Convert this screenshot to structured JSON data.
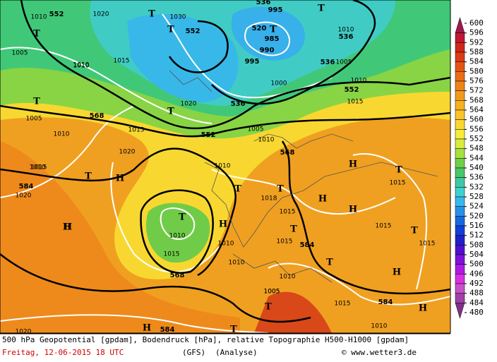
{
  "legend": {
    "labels": [
      "600",
      "596",
      "592",
      "588",
      "584",
      "580",
      "576",
      "572",
      "568",
      "564",
      "560",
      "556",
      "552",
      "548",
      "544",
      "540",
      "536",
      "532",
      "528",
      "524",
      "520",
      "516",
      "512",
      "508",
      "504",
      "500",
      "496",
      "492",
      "488",
      "484",
      "480"
    ],
    "colors": [
      "#a0184c",
      "#c01830",
      "#d02818",
      "#dc3c14",
      "#e45414",
      "#ea6c16",
      "#ee8418",
      "#f29a1c",
      "#f6b020",
      "#f8c428",
      "#fad830",
      "#f6ec3c",
      "#d8ec40",
      "#a8e040",
      "#70d048",
      "#48c868",
      "#40c8a0",
      "#40d0d0",
      "#38b8ec",
      "#2890e8",
      "#1868e0",
      "#1040d8",
      "#2020c8",
      "#5010d0",
      "#8010dc",
      "#b018e4",
      "#d830e0",
      "#c850c8",
      "#a040a8",
      "#803088"
    ]
  },
  "caption": {
    "line1": "500 hPa Geopotential [gpdam], Bodendruck [hPa], relative Topographie H500-H1000 [gpdam]",
    "date": "Freitag, 12-06-2015  18 UTC",
    "model": "(GFS)",
    "mode": "(Analyse)",
    "credit": "© www.wetter3.de"
  },
  "map_labels": [
    "552",
    "1010",
    "1020",
    "T",
    "1030",
    "552",
    "T",
    "536",
    "995",
    "520",
    "T",
    "985",
    "990",
    "T",
    "1010",
    "536",
    "1010",
    "T",
    "1005",
    "1010",
    "1015",
    "536",
    "1005",
    "995",
    "1000",
    "T",
    "1020",
    "536",
    "552",
    "1010",
    "1015",
    "T",
    "1005",
    "568",
    "1010",
    "1015",
    "T",
    "552",
    "1005",
    "1010",
    "1020",
    "568",
    "1010",
    "H",
    "1015",
    "1010",
    "H",
    "T",
    "1015",
    "584",
    "1020",
    "T",
    "T",
    "1018",
    "1015",
    "1010",
    "H",
    "H",
    "H",
    "1015",
    "T",
    "H",
    "1015",
    "1010",
    "T",
    "T",
    "1015",
    "1015",
    "584",
    "T",
    "1010",
    "568",
    "1010",
    "1005",
    "H",
    "T",
    "1015",
    "584",
    "H",
    "H",
    "1020",
    "H",
    "584",
    "T",
    "1010",
    "1005"
  ]
}
